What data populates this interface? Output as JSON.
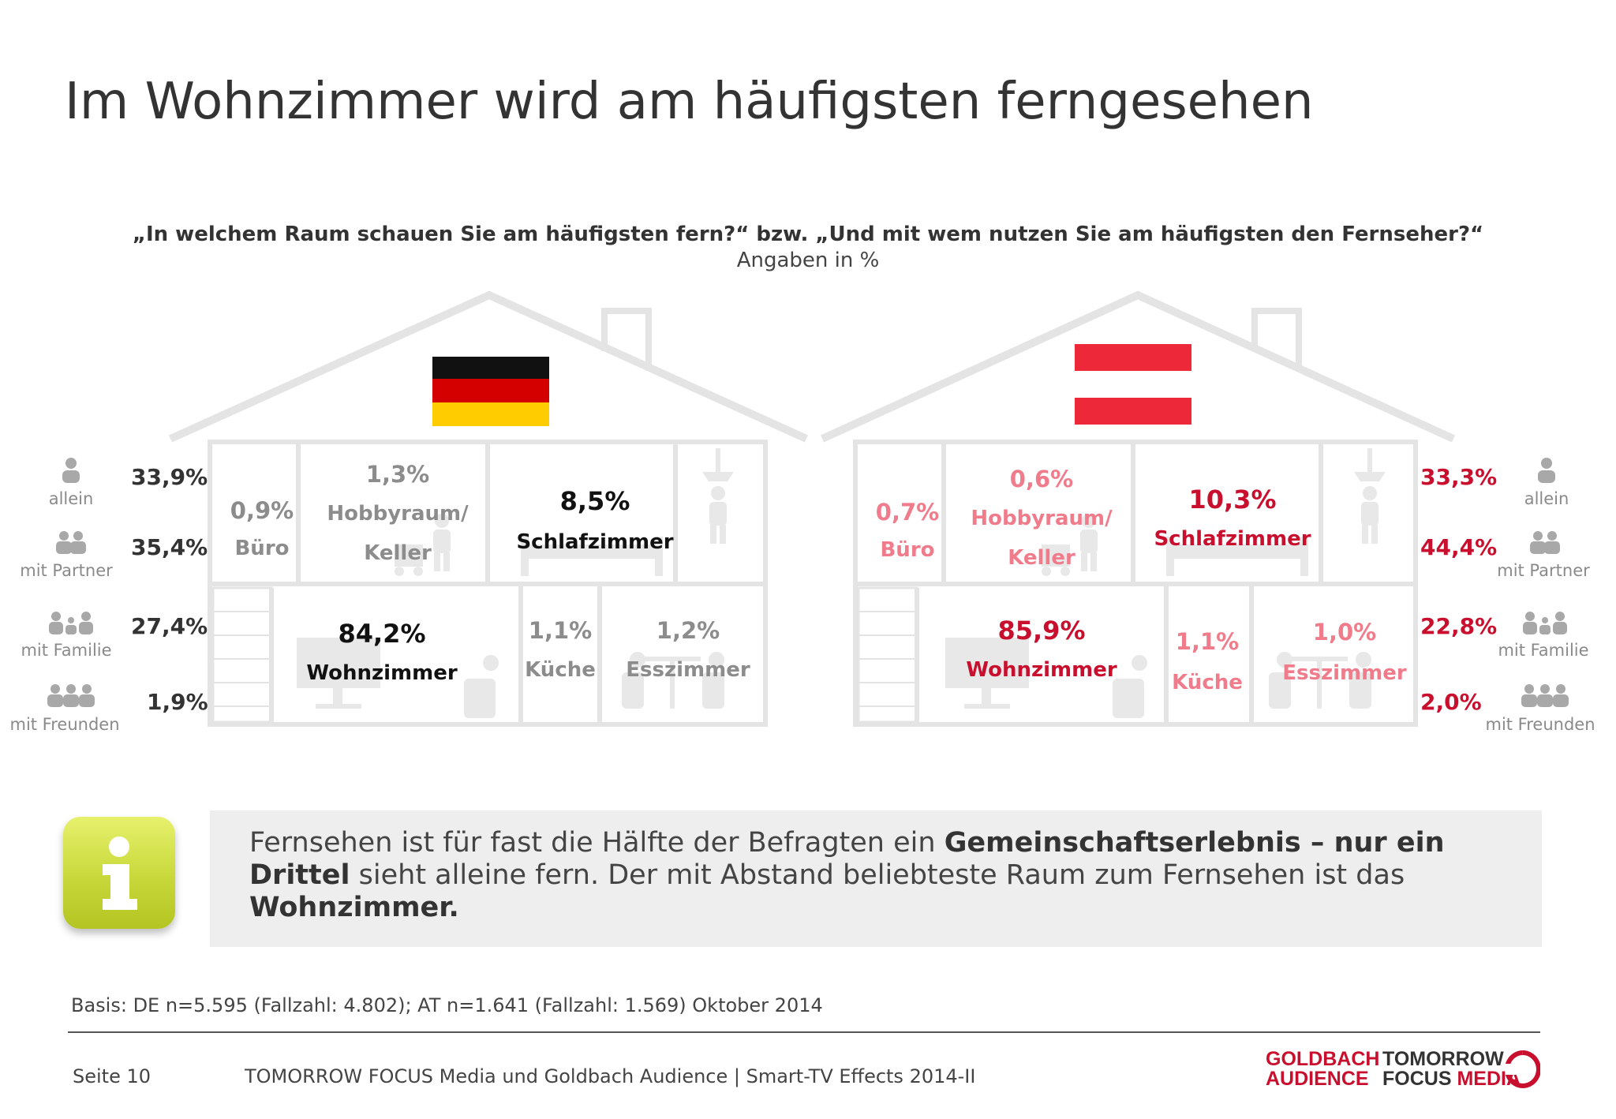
{
  "page": {
    "title": "Im Wohnzimmer wird am häufigsten ferngesehen",
    "question": "„In welchem Raum schauen Sie am häufigsten fern?“ bzw. „Und mit wem nutzen Sie am häufigsten den Fernseher?“",
    "unit_note": "Angaben in %"
  },
  "colors": {
    "germany_strong": "#111111",
    "germany_weak": "#8c8c8c",
    "austria_strong": "#c8102e",
    "austria_weak": "#ef7b8b",
    "info_icon": "#c8d83a"
  },
  "germany": {
    "flag": "germany-flag",
    "rooms": {
      "buero": {
        "value": "0,9%",
        "label": "Büro"
      },
      "hobbyraum": {
        "value": "1,3%",
        "label_line1": "Hobbyraum/",
        "label_line2": "Keller"
      },
      "schlafzimmer": {
        "value": "8,5%",
        "label": "Schlafzimmer"
      },
      "wohnzimmer": {
        "value": "84,2%",
        "label": "Wohnzimmer"
      },
      "kueche": {
        "value": "1,1%",
        "label": "Küche"
      },
      "esszimmer": {
        "value": "1,2%",
        "label": "Esszimmer"
      }
    },
    "company": [
      {
        "value": "33,9%",
        "label": "allein",
        "icon": "person-icon"
      },
      {
        "value": "35,4%",
        "label": "mit Partner",
        "icon": "couple-icon"
      },
      {
        "value": "27,4%",
        "label": "mit Familie",
        "icon": "family-icon"
      },
      {
        "value": "1,9%",
        "label": "mit Freunden",
        "icon": "friends-icon"
      }
    ]
  },
  "austria": {
    "flag": "austria-flag",
    "rooms": {
      "buero": {
        "value": "0,7%",
        "label": "Büro"
      },
      "hobbyraum": {
        "value": "0,6%",
        "label_line1": "Hobbyraum/",
        "label_line2": "Keller"
      },
      "schlafzimmer": {
        "value": "10,3%",
        "label": "Schlafzimmer"
      },
      "wohnzimmer": {
        "value": "85,9%",
        "label": "Wohnzimmer"
      },
      "kueche": {
        "value": "1,1%",
        "label": "Küche"
      },
      "esszimmer": {
        "value": "1,0%",
        "label": "Esszimmer"
      }
    },
    "company": [
      {
        "value": "33,3%",
        "label": "allein",
        "icon": "person-icon"
      },
      {
        "value": "44,4%",
        "label": "mit Partner",
        "icon": "couple-icon"
      },
      {
        "value": "22,8%",
        "label": "mit Familie",
        "icon": "family-icon"
      },
      {
        "value": "2,0%",
        "label": "mit Freunden",
        "icon": "friends-icon"
      }
    ]
  },
  "info": {
    "icon": "info-icon",
    "text_part1": "Fernsehen ist für fast die Hälfte der Befragten ein ",
    "text_bold1": "Gemeinschaftserlebnis – nur ein Drittel",
    "text_part2": " sieht alleine fern. Der mit Abstand beliebteste Raum zum Fernsehen ist das ",
    "text_bold2": "Wohnzimmer."
  },
  "basis": "Basis: DE n=5.595 (Fallzahl: 4.802); AT n=1.641 (Fallzahl: 1.569) Oktober 2014",
  "footer": {
    "page": "Seite 10",
    "source": "TOMORROW FOCUS Media und Goldbach Audience | Smart-TV Effects 2014-II",
    "logo_goldbach_line1": "GOLDBACH",
    "logo_goldbach_line2": "AUDIENCE",
    "logo_tf_line1": "TOMORROW",
    "logo_tf_line2a": "FOCUS ",
    "logo_tf_line2b": "MEDIA"
  }
}
